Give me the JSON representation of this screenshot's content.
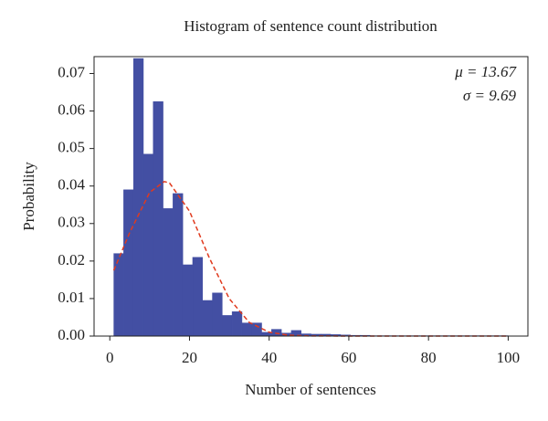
{
  "chart_data": {
    "type": "histogram",
    "title": "Histogram of sentence count distribution",
    "x_label": "Number of sentences",
    "y_label": "Probability",
    "annotations": [
      "μ = 13.67",
      "σ = 9.69"
    ],
    "bins": [
      1,
      3.475,
      5.95,
      8.425,
      10.9,
      13.375,
      15.85,
      18.325,
      20.8,
      23.275,
      25.75,
      28.225,
      30.7,
      33.175,
      35.65,
      38.125,
      40.6,
      43.075,
      45.55,
      48.025,
      50.5,
      52.975,
      55.45,
      57.925,
      60.4,
      62.875,
      65.35,
      67.825,
      70.3,
      72.775,
      75.25,
      77.725,
      80.2,
      82.675,
      85.15,
      87.625,
      90.1,
      92.575,
      95.05,
      97.525,
      100
    ],
    "values": [
      0.022,
      0.039,
      0.074,
      0.0485,
      0.0625,
      0.034,
      0.038,
      0.019,
      0.021,
      0.0095,
      0.0115,
      0.0055,
      0.0065,
      0.0035,
      0.0035,
      0.001,
      0.0018,
      0.0008,
      0.0015,
      0.0006,
      0.0005,
      0.0005,
      0.0004,
      0.0003,
      0.0002,
      0.0002,
      0.0001,
      0.0001,
      0.0001,
      0.0001,
      0.0001,
      0.0001,
      0.0001,
      0.0001,
      0.0001,
      0.0001,
      0.0001,
      0.0001,
      0.0001,
      0.0001
    ],
    "color": "#434fa3",
    "fit": {
      "color": "#e03a1e",
      "x": [
        1,
        5,
        10,
        13.67,
        15,
        20,
        25,
        30,
        35,
        40,
        45,
        50,
        60,
        70,
        80,
        90,
        100
      ],
      "values": [
        0.0175,
        0.0276,
        0.0383,
        0.0412,
        0.0408,
        0.0333,
        0.0208,
        0.00995,
        0.00365,
        0.00103,
        0.00022,
        4e-05,
        0,
        0,
        0,
        0,
        0
      ]
    },
    "xlim": [
      -3.95,
      104.95
    ],
    "ylim": [
      0,
      0.0745
    ],
    "xticks": [
      0,
      20,
      40,
      60,
      80,
      100
    ],
    "yticks": [
      {
        "value": 0,
        "label": "0.00"
      },
      {
        "value": 0.01,
        "label": "0.01"
      },
      {
        "value": 0.02,
        "label": "0.02"
      },
      {
        "value": 0.03,
        "label": "0.03"
      },
      {
        "value": 0.04,
        "label": "0.04"
      },
      {
        "value": 0.05,
        "label": "0.05"
      },
      {
        "value": 0.06,
        "label": "0.06"
      },
      {
        "value": 0.07,
        "label": "0.07"
      }
    ]
  }
}
